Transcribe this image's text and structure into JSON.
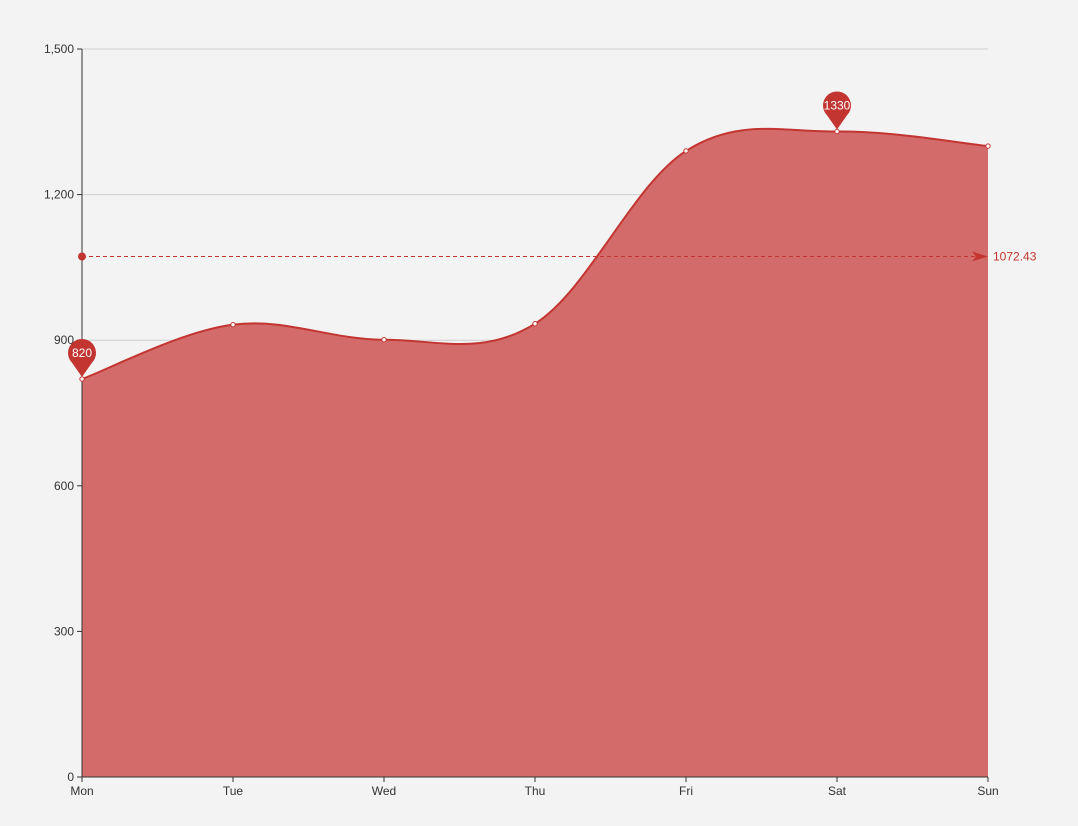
{
  "chart_data": {
    "type": "area",
    "smooth": true,
    "categories": [
      "Mon",
      "Tue",
      "Wed",
      "Thu",
      "Fri",
      "Sat",
      "Sun"
    ],
    "series": [
      {
        "values": [
          820,
          932,
          901,
          934,
          1290,
          1330,
          1300
        ]
      }
    ],
    "ylim": [
      0,
      1500
    ],
    "yticks": [
      0,
      300,
      600,
      900,
      1200,
      1500
    ],
    "ytick_labels": [
      "0",
      "300",
      "600",
      "900",
      "1,200",
      "1,500"
    ],
    "grid": true,
    "mark_points": [
      {
        "kind": "min",
        "category": "Mon",
        "value": 820,
        "label": "820"
      },
      {
        "kind": "max",
        "category": "Sat",
        "value": 1330,
        "label": "1330"
      }
    ],
    "mark_line": {
      "kind": "average",
      "value": 1072.43,
      "label": "1072.43"
    },
    "colors": {
      "line": "#c23531",
      "area": "#d46b6b",
      "grid": "#cfcfcf",
      "axis": "#333333",
      "background": "#f3f3f3",
      "point_fill": "#ffffff"
    }
  }
}
